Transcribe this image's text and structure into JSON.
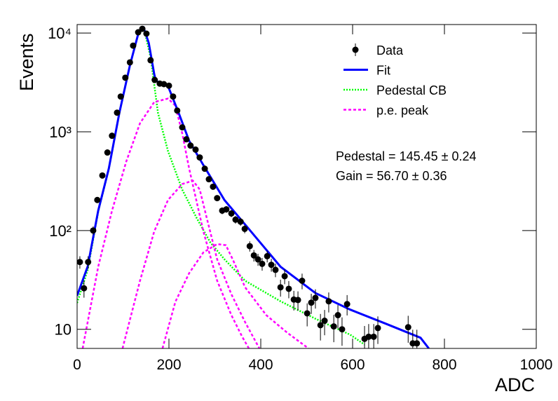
{
  "chart_data": {
    "type": "line",
    "xlabel": "ADC",
    "ylabel": "Events",
    "xlim": [
      0,
      1000
    ],
    "xticks": [
      0,
      200,
      400,
      600,
      800,
      1000
    ],
    "ylim": [
      6.4,
      12200
    ],
    "log_y": true,
    "yticks": [
      {
        "value": 10,
        "label": "10"
      },
      {
        "value": 100,
        "label": "10²"
      },
      {
        "value": 1000,
        "label": "10³"
      },
      {
        "value": 10000,
        "label": "10⁴"
      }
    ],
    "legend": "upper right",
    "annotations": [
      "Pedestal = 145.45 ± 0.24",
      "Gain = 56.70 ± 0.36"
    ],
    "series": [
      {
        "name": "Data",
        "color": "#000000",
        "style": "points",
        "x": [
          6,
          15,
          24,
          35,
          44,
          55,
          66,
          76,
          87,
          95,
          105,
          115,
          122,
          133,
          142,
          151,
          160,
          169,
          180,
          189,
          200,
          209,
          218,
          229,
          238,
          247,
          258,
          267,
          278,
          287,
          296,
          305,
          316,
          325,
          336,
          345,
          356,
          365,
          376,
          385,
          394,
          403,
          414,
          423,
          432,
          443,
          452,
          461,
          472,
          481,
          490,
          501,
          510,
          519,
          530,
          539,
          548,
          559,
          568,
          577,
          588,
          626,
          635,
          646,
          655,
          721,
          731,
          740
        ],
        "values": [
          48,
          26,
          48,
          100,
          204,
          361,
          617,
          912,
          1563,
          2276,
          3532,
          5050,
          7460,
          10190,
          11040,
          9865,
          5310,
          3350,
          3080,
          3040,
          2930,
          2276,
          1640,
          1110,
          840,
          725,
          660,
          550,
          423,
          331,
          278,
          213,
          159,
          164,
          149,
          129,
          123,
          104,
          69.5,
          56,
          51,
          46,
          55,
          45,
          40,
          26.6,
          34.5,
          25.7,
          20,
          19.8,
          31,
          14.5,
          18.6,
          20.8,
          11,
          12.2,
          19.2,
          10.7,
          13.9,
          10,
          18,
          8,
          8.4,
          8.4,
          10.3,
          10.5,
          7.2,
          7.2
        ],
        "errors": [
          6.9,
          5.1,
          6.9,
          10,
          14.3,
          19,
          24.8,
          30.2,
          39.5,
          47.7,
          59.4,
          71.1,
          86.4,
          100.9,
          105.1,
          99.3,
          72.9,
          57.9,
          55.5,
          55.1,
          54.1,
          47.7,
          40.5,
          33.3,
          29,
          26.9,
          25.7,
          23.5,
          20.6,
          18.2,
          16.7,
          14.6,
          12.6,
          12.8,
          12.2,
          11.4,
          11.1,
          10.2,
          8.3,
          7.5,
          7.1,
          6.8,
          7.4,
          6.7,
          6.3,
          5.2,
          5.9,
          5.1,
          4.5,
          4.4,
          5.6,
          3.8,
          4.3,
          4.6,
          3.3,
          3.5,
          4.4,
          3.3,
          3.7,
          3.2,
          4.2,
          2.8,
          2.9,
          2.9,
          3.2,
          3.2,
          2.7,
          2.7
        ]
      },
      {
        "name": "Fit",
        "color": "#0000ff",
        "style": "solid",
        "x": [
          0,
          23,
          46,
          69,
          92,
          115,
          134,
          145,
          156,
          168,
          171,
          180,
          198,
          221,
          244,
          275,
          321,
          366,
          443,
          519,
          595,
          672,
          748,
          766
        ],
        "values": [
          21.9,
          43.3,
          159,
          424,
          1560,
          4700,
          10200,
          11300,
          7940,
          3840,
          3340,
          3080,
          2900,
          1560,
          810,
          460,
          203,
          115,
          43,
          23.3,
          15.8,
          11.4,
          8.2,
          6.4
        ]
      },
      {
        "name": "Pedestal CB",
        "color": "#00ff00",
        "style": "dotted",
        "x": [
          0,
          23,
          46,
          69,
          92,
          115,
          134,
          145,
          160,
          176,
          198,
          229,
          260,
          290,
          321,
          366,
          443,
          519,
          595,
          626
        ],
        "values": [
          18.5,
          40,
          155,
          420,
          1550,
          4700,
          10200,
          11300,
          5700,
          1560,
          636,
          259,
          135,
          76,
          51,
          31,
          19.2,
          12.8,
          8.8,
          7
        ]
      },
      {
        "name": "p.e. peak",
        "color": "#ff00ff",
        "style": "dashed",
        "x": [
          12,
          46,
          76,
          107,
          137,
          168,
          198,
          214,
          229,
          244,
          275,
          305,
          336,
          359,
          374
        ],
        "values": [
          6.4,
          43,
          159,
          500,
          1220,
          2000,
          2170,
          1840,
          960,
          425,
          98,
          31,
          13.9,
          8.5,
          6.4
        ]
      },
      {
        "color": "#ff00ff",
        "style": "dashed",
        "x": [
          99,
          137,
          168,
          198,
          229,
          252,
          267,
          282,
          305,
          336,
          366,
          397
        ],
        "values": [
          6.4,
          31,
          98,
          204,
          296,
          320,
          261,
          136,
          51,
          22.6,
          11.8,
          6.4
        ]
      },
      {
        "color": "#ff00ff",
        "style": "dashed",
        "x": [
          186,
          214,
          244,
          275,
          305,
          324,
          339,
          366,
          412,
          458,
          504
        ],
        "values": [
          6.4,
          19,
          37,
          60,
          73,
          71,
          51,
          26.6,
          13.9,
          9.2,
          6.4
        ]
      }
    ]
  }
}
